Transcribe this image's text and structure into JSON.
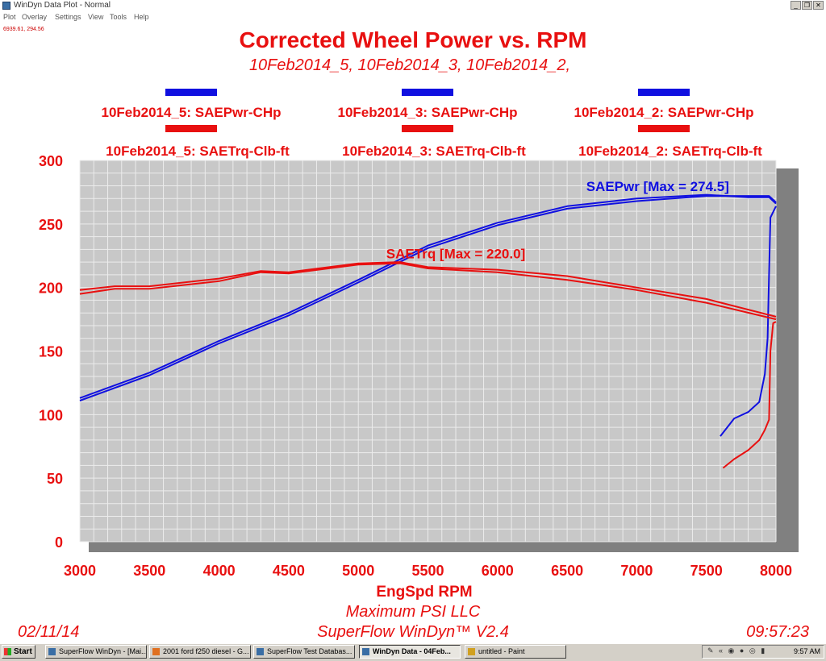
{
  "window": {
    "title": "WinDyn Data Plot - Normal",
    "buttons": [
      "_",
      "❐",
      "✕"
    ]
  },
  "menu": [
    "Plot",
    "Overlay",
    "Settings",
    "View",
    "Tools",
    "Help"
  ],
  "coords_readout": "6939.61, 294.56",
  "chart_data": {
    "type": "line",
    "title": "Corrected Wheel Power vs. RPM",
    "subtitle": "10Feb2014_5, 10Feb2014_3, 10Feb2014_2,",
    "xlabel": "EngSpd RPM",
    "ylabel": "",
    "xlim": [
      3000,
      8000
    ],
    "ylim": [
      0,
      300
    ],
    "x_ticks": [
      3000,
      3500,
      4000,
      4500,
      5000,
      5500,
      6000,
      6500,
      7000,
      7500,
      8000
    ],
    "y_ticks": [
      0,
      50,
      100,
      150,
      200,
      250,
      300
    ],
    "grid": true,
    "legend_placement": "top",
    "legend": [
      {
        "label": "10Feb2014_5: SAEPwr-CHp",
        "color": "#1010e0"
      },
      {
        "label": "10Feb2014_3: SAEPwr-CHp",
        "color": "#1010e0"
      },
      {
        "label": "10Feb2014_2: SAEPwr-CHp",
        "color": "#1010e0"
      },
      {
        "label": "10Feb2014_5: SAETrq-Clb-ft",
        "color": "#e81010"
      },
      {
        "label": "10Feb2014_3: SAETrq-Clb-ft",
        "color": "#e81010"
      },
      {
        "label": "10Feb2014_2: SAETrq-Clb-ft",
        "color": "#e81010"
      }
    ],
    "annotations": [
      {
        "text": "SAEPwr [Max = 274.5]",
        "x": 7150,
        "y": 276,
        "color": "#1010e0"
      },
      {
        "text": "SAETrq [Max = 220.0]",
        "x": 5700,
        "y": 223,
        "color": "#e81010"
      }
    ],
    "series": [
      {
        "run": "10Feb2014_5",
        "quantity": "SAEPwr-CHp",
        "color": "#1010e0",
        "x": [
          3000,
          3500,
          4000,
          4500,
          5000,
          5500,
          6000,
          6500,
          7000,
          7500,
          7800,
          7950,
          8000
        ],
        "y": [
          113,
          133,
          158,
          180,
          206,
          233,
          251,
          264,
          270,
          273,
          271,
          271,
          266
        ]
      },
      {
        "run": "10Feb2014_3",
        "quantity": "SAEPwr-CHp",
        "color": "#1010e0",
        "x": [
          3000,
          3500,
          4000,
          4500,
          5000,
          5500,
          6000,
          6500,
          7000,
          7500,
          7800,
          7950,
          8000
        ],
        "y": [
          111,
          131,
          156,
          178,
          204,
          231,
          249,
          262,
          268,
          272,
          272,
          272,
          267
        ]
      },
      {
        "run": "10Feb2014_2",
        "quantity": "SAEPwr-CHp",
        "color": "#1010e0",
        "x": [
          7600,
          7700,
          7800,
          7880,
          7920,
          7940,
          7950,
          7960,
          8000
        ],
        "y": [
          83,
          97,
          102,
          110,
          132,
          160,
          210,
          255,
          264
        ]
      },
      {
        "run": "10Feb2014_5",
        "quantity": "SAETrq-Clb-ft",
        "color": "#e81010",
        "x": [
          3000,
          3250,
          3500,
          4000,
          4300,
          4500,
          5000,
          5300,
          5500,
          6000,
          6500,
          7000,
          7500,
          8000
        ],
        "y": [
          198,
          201,
          201,
          207,
          213,
          212,
          219,
          220,
          216,
          214,
          209,
          200,
          191,
          177
        ]
      },
      {
        "run": "10Feb2014_3",
        "quantity": "SAETrq-Clb-ft",
        "color": "#e81010",
        "x": [
          3000,
          3250,
          3500,
          4000,
          4300,
          4500,
          5000,
          5300,
          5500,
          6000,
          6500,
          7000,
          7500,
          8000
        ],
        "y": [
          195,
          199,
          199,
          205,
          212,
          211,
          218,
          219,
          215,
          212,
          206,
          198,
          188,
          175
        ]
      },
      {
        "run": "10Feb2014_2",
        "quantity": "SAETrq-Clb-ft",
        "color": "#e81010",
        "x": [
          7620,
          7700,
          7800,
          7880,
          7920,
          7950,
          7960,
          7980,
          8000
        ],
        "y": [
          58,
          65,
          72,
          80,
          88,
          96,
          150,
          172,
          173
        ]
      }
    ]
  },
  "footer": {
    "company": "Maximum PSI LLC",
    "software": "SuperFlow WinDyn™ V2.4",
    "date": "02/11/14",
    "time": "09:57:23"
  },
  "taskbar": {
    "start_label": "Start",
    "tasks": [
      {
        "label": "SuperFlow WinDyn - [Mai...",
        "active": false
      },
      {
        "label": "2001 ford f250 diesel - G...",
        "active": false
      },
      {
        "label": "SuperFlow Test Databas...",
        "active": false
      },
      {
        "label": "WinDyn Data - 04Feb...",
        "active": true
      },
      {
        "label": "untitled - Paint",
        "active": false
      }
    ],
    "clock": "9:57 AM"
  }
}
